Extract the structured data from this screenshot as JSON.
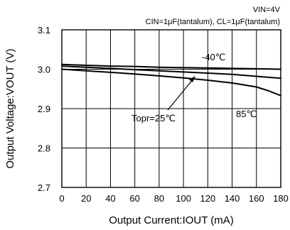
{
  "chart_data": {
    "type": "line",
    "title": "",
    "conditions": [
      "VIN=4V",
      "CIN=1μF(tantalum), CL=1μF(tantalum)"
    ],
    "xlabel": "Output Current:IOUT (mA)",
    "ylabel": "Output Voltage:VOUT (V)",
    "xlim": [
      0,
      180
    ],
    "ylim": [
      2.7,
      3.1
    ],
    "x_ticks": [
      0,
      20,
      40,
      60,
      80,
      100,
      120,
      140,
      160,
      180
    ],
    "y_ticks": [
      2.7,
      2.8,
      2.9,
      3.0,
      3.1
    ],
    "grid": true,
    "series": [
      {
        "name": "-40℃",
        "x": [
          0,
          20,
          40,
          60,
          80,
          100,
          120,
          140,
          160,
          180
        ],
        "y": [
          3.012,
          3.01,
          3.008,
          3.007,
          3.005,
          3.004,
          3.003,
          3.002,
          3.001,
          3.0
        ]
      },
      {
        "name": "Topr=25℃",
        "x": [
          0,
          20,
          40,
          60,
          80,
          100,
          120,
          140,
          160,
          180
        ],
        "y": [
          3.008,
          3.005,
          3.002,
          2.999,
          2.996,
          2.993,
          2.99,
          2.987,
          2.982,
          2.977
        ]
      },
      {
        "name": "85℃",
        "x": [
          0,
          20,
          40,
          60,
          80,
          100,
          120,
          140,
          160,
          170,
          180
        ],
        "y": [
          3.0,
          2.996,
          2.992,
          2.988,
          2.983,
          2.978,
          2.972,
          2.965,
          2.955,
          2.945,
          2.933
        ]
      }
    ],
    "annotations": {
      "minus40": "-40℃",
      "topr": "Topr=25℃",
      "hot85": "85℃"
    }
  }
}
